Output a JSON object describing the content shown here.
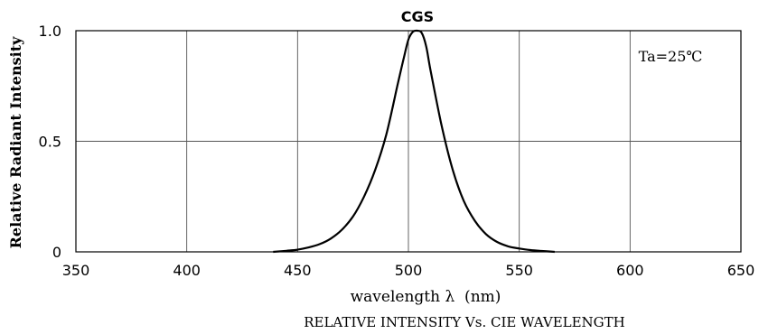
{
  "chart_data": {
    "type": "line",
    "title": "CGS",
    "xlabel": "wavelength λ  (nm)",
    "ylabel": "Relative Radiant Intensity",
    "subtitle": "RELATIVE INTENSITY Vs. CIE WAVELENGTH",
    "annotation": "Ta=25℃",
    "xlim": [
      350,
      650
    ],
    "ylim": [
      0,
      1.0
    ],
    "xticks": [
      350,
      400,
      450,
      500,
      550,
      600,
      650
    ],
    "yticks": [
      0,
      0.5,
      1.0
    ],
    "ytick_labels": [
      "0",
      "0.5",
      "1.0"
    ],
    "grid": true,
    "line_color": "#000000",
    "grid_color": "#555555",
    "series": [
      {
        "x": [
          439,
          445,
          450,
          455,
          460,
          465,
          470,
          475,
          480,
          485,
          490,
          495,
          498,
          500,
          502,
          504,
          506,
          508,
          510,
          515,
          520,
          525,
          530,
          535,
          540,
          545,
          550,
          555,
          560,
          566
        ],
        "y": [
          0.0,
          0.005,
          0.01,
          0.02,
          0.035,
          0.06,
          0.1,
          0.16,
          0.25,
          0.37,
          0.53,
          0.75,
          0.88,
          0.96,
          0.995,
          1.0,
          0.99,
          0.93,
          0.82,
          0.57,
          0.37,
          0.23,
          0.14,
          0.08,
          0.045,
          0.025,
          0.015,
          0.008,
          0.004,
          0.0
        ]
      }
    ]
  }
}
